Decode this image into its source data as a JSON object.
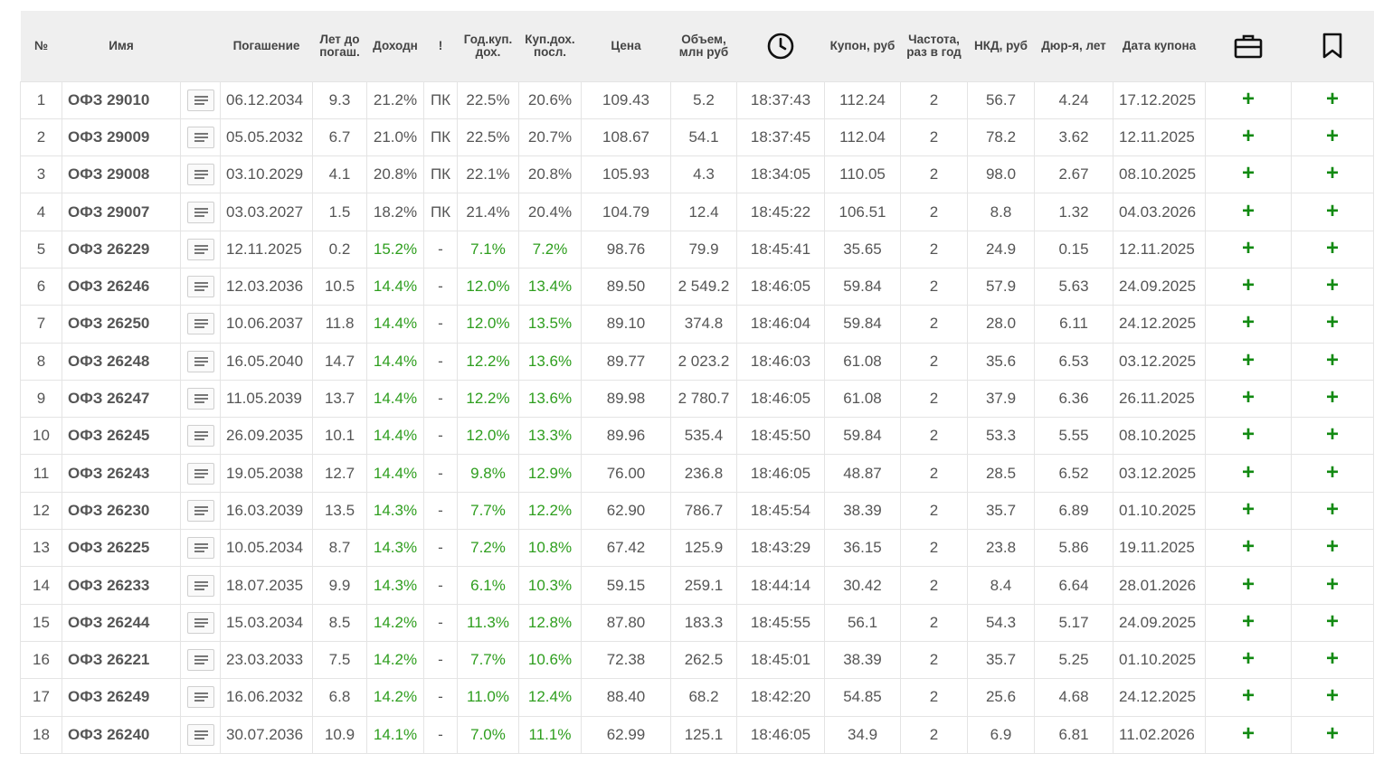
{
  "colors": {
    "accent_green": "#2e9e1e",
    "plus_green": "#128a12"
  },
  "header": {
    "num": "№",
    "name": "Имя",
    "maturity": "Погашение",
    "years_to_maturity": [
      "Лет до",
      "погаш."
    ],
    "yield": "Доходн",
    "flag": "!",
    "annual_coupon_yield": [
      "Год.куп.",
      "дох."
    ],
    "last_coupon_yield": [
      "Куп.дох.",
      "посл."
    ],
    "price": "Цена",
    "volume": [
      "Объем,",
      "млн руб"
    ],
    "time_icon": "clock-icon",
    "coupon": "Купон, руб",
    "frequency": [
      "Частота,",
      "раз в год"
    ],
    "nkd": "НКД, руб",
    "duration": "Дюр-я, лет",
    "coupon_date": "Дата купона",
    "portfolio_icon": "briefcase-icon",
    "favorite_icon": "bookmark-icon"
  },
  "rows": [
    {
      "num": "1",
      "name": "ОФЗ 29010",
      "maturity": "06.12.2034",
      "years": "9.3",
      "yield": "21.2%",
      "flag": "ПК",
      "ann": "22.5%",
      "last": "20.6%",
      "price": "109.43",
      "volume": "5.2",
      "time": "18:37:43",
      "coupon": "112.24",
      "freq": "2",
      "nkd": "56.7",
      "dur": "4.24",
      "cdate": "17.12.2025",
      "green": false
    },
    {
      "num": "2",
      "name": "ОФЗ 29009",
      "maturity": "05.05.2032",
      "years": "6.7",
      "yield": "21.0%",
      "flag": "ПК",
      "ann": "22.5%",
      "last": "20.7%",
      "price": "108.67",
      "volume": "54.1",
      "time": "18:37:45",
      "coupon": "112.04",
      "freq": "2",
      "nkd": "78.2",
      "dur": "3.62",
      "cdate": "12.11.2025",
      "green": false
    },
    {
      "num": "3",
      "name": "ОФЗ 29008",
      "maturity": "03.10.2029",
      "years": "4.1",
      "yield": "20.8%",
      "flag": "ПК",
      "ann": "22.1%",
      "last": "20.8%",
      "price": "105.93",
      "volume": "4.3",
      "time": "18:34:05",
      "coupon": "110.05",
      "freq": "2",
      "nkd": "98.0",
      "dur": "2.67",
      "cdate": "08.10.2025",
      "green": false
    },
    {
      "num": "4",
      "name": "ОФЗ 29007",
      "maturity": "03.03.2027",
      "years": "1.5",
      "yield": "18.2%",
      "flag": "ПК",
      "ann": "21.4%",
      "last": "20.4%",
      "price": "104.79",
      "volume": "12.4",
      "time": "18:45:22",
      "coupon": "106.51",
      "freq": "2",
      "nkd": "8.8",
      "dur": "1.32",
      "cdate": "04.03.2026",
      "green": false
    },
    {
      "num": "5",
      "name": "ОФЗ 26229",
      "maturity": "12.11.2025",
      "years": "0.2",
      "yield": "15.2%",
      "flag": "-",
      "ann": "7.1%",
      "last": "7.2%",
      "price": "98.76",
      "volume": "79.9",
      "time": "18:45:41",
      "coupon": "35.65",
      "freq": "2",
      "nkd": "24.9",
      "dur": "0.15",
      "cdate": "12.11.2025",
      "green": true
    },
    {
      "num": "6",
      "name": "ОФЗ 26246",
      "maturity": "12.03.2036",
      "years": "10.5",
      "yield": "14.4%",
      "flag": "-",
      "ann": "12.0%",
      "last": "13.4%",
      "price": "89.50",
      "volume": "2 549.2",
      "time": "18:46:05",
      "coupon": "59.84",
      "freq": "2",
      "nkd": "57.9",
      "dur": "5.63",
      "cdate": "24.09.2025",
      "green": true
    },
    {
      "num": "7",
      "name": "ОФЗ 26250",
      "maturity": "10.06.2037",
      "years": "11.8",
      "yield": "14.4%",
      "flag": "-",
      "ann": "12.0%",
      "last": "13.5%",
      "price": "89.10",
      "volume": "374.8",
      "time": "18:46:04",
      "coupon": "59.84",
      "freq": "2",
      "nkd": "28.0",
      "dur": "6.11",
      "cdate": "24.12.2025",
      "green": true
    },
    {
      "num": "8",
      "name": "ОФЗ 26248",
      "maturity": "16.05.2040",
      "years": "14.7",
      "yield": "14.4%",
      "flag": "-",
      "ann": "12.2%",
      "last": "13.6%",
      "price": "89.77",
      "volume": "2 023.2",
      "time": "18:46:03",
      "coupon": "61.08",
      "freq": "2",
      "nkd": "35.6",
      "dur": "6.53",
      "cdate": "03.12.2025",
      "green": true
    },
    {
      "num": "9",
      "name": "ОФЗ 26247",
      "maturity": "11.05.2039",
      "years": "13.7",
      "yield": "14.4%",
      "flag": "-",
      "ann": "12.2%",
      "last": "13.6%",
      "price": "89.98",
      "volume": "2 780.7",
      "time": "18:46:05",
      "coupon": "61.08",
      "freq": "2",
      "nkd": "37.9",
      "dur": "6.36",
      "cdate": "26.11.2025",
      "green": true
    },
    {
      "num": "10",
      "name": "ОФЗ 26245",
      "maturity": "26.09.2035",
      "years": "10.1",
      "yield": "14.4%",
      "flag": "-",
      "ann": "12.0%",
      "last": "13.3%",
      "price": "89.96",
      "volume": "535.4",
      "time": "18:45:50",
      "coupon": "59.84",
      "freq": "2",
      "nkd": "53.3",
      "dur": "5.55",
      "cdate": "08.10.2025",
      "green": true
    },
    {
      "num": "11",
      "name": "ОФЗ 26243",
      "maturity": "19.05.2038",
      "years": "12.7",
      "yield": "14.4%",
      "flag": "-",
      "ann": "9.8%",
      "last": "12.9%",
      "price": "76.00",
      "volume": "236.8",
      "time": "18:46:05",
      "coupon": "48.87",
      "freq": "2",
      "nkd": "28.5",
      "dur": "6.52",
      "cdate": "03.12.2025",
      "green": true
    },
    {
      "num": "12",
      "name": "ОФЗ 26230",
      "maturity": "16.03.2039",
      "years": "13.5",
      "yield": "14.3%",
      "flag": "-",
      "ann": "7.7%",
      "last": "12.2%",
      "price": "62.90",
      "volume": "786.7",
      "time": "18:45:54",
      "coupon": "38.39",
      "freq": "2",
      "nkd": "35.7",
      "dur": "6.89",
      "cdate": "01.10.2025",
      "green": true
    },
    {
      "num": "13",
      "name": "ОФЗ 26225",
      "maturity": "10.05.2034",
      "years": "8.7",
      "yield": "14.3%",
      "flag": "-",
      "ann": "7.2%",
      "last": "10.8%",
      "price": "67.42",
      "volume": "125.9",
      "time": "18:43:29",
      "coupon": "36.15",
      "freq": "2",
      "nkd": "23.8",
      "dur": "5.86",
      "cdate": "19.11.2025",
      "green": true
    },
    {
      "num": "14",
      "name": "ОФЗ 26233",
      "maturity": "18.07.2035",
      "years": "9.9",
      "yield": "14.3%",
      "flag": "-",
      "ann": "6.1%",
      "last": "10.3%",
      "price": "59.15",
      "volume": "259.1",
      "time": "18:44:14",
      "coupon": "30.42",
      "freq": "2",
      "nkd": "8.4",
      "dur": "6.64",
      "cdate": "28.01.2026",
      "green": true
    },
    {
      "num": "15",
      "name": "ОФЗ 26244",
      "maturity": "15.03.2034",
      "years": "8.5",
      "yield": "14.2%",
      "flag": "-",
      "ann": "11.3%",
      "last": "12.8%",
      "price": "87.80",
      "volume": "183.3",
      "time": "18:45:55",
      "coupon": "56.1",
      "freq": "2",
      "nkd": "54.3",
      "dur": "5.17",
      "cdate": "24.09.2025",
      "green": true
    },
    {
      "num": "16",
      "name": "ОФЗ 26221",
      "maturity": "23.03.2033",
      "years": "7.5",
      "yield": "14.2%",
      "flag": "-",
      "ann": "7.7%",
      "last": "10.6%",
      "price": "72.38",
      "volume": "262.5",
      "time": "18:45:01",
      "coupon": "38.39",
      "freq": "2",
      "nkd": "35.7",
      "dur": "5.25",
      "cdate": "01.10.2025",
      "green": true
    },
    {
      "num": "17",
      "name": "ОФЗ 26249",
      "maturity": "16.06.2032",
      "years": "6.8",
      "yield": "14.2%",
      "flag": "-",
      "ann": "11.0%",
      "last": "12.4%",
      "price": "88.40",
      "volume": "68.2",
      "time": "18:42:20",
      "coupon": "54.85",
      "freq": "2",
      "nkd": "25.6",
      "dur": "4.68",
      "cdate": "24.12.2025",
      "green": true
    },
    {
      "num": "18",
      "name": "ОФЗ 26240",
      "maturity": "30.07.2036",
      "years": "10.9",
      "yield": "14.1%",
      "flag": "-",
      "ann": "7.0%",
      "last": "11.1%",
      "price": "62.99",
      "volume": "125.1",
      "time": "18:46:05",
      "coupon": "34.9",
      "freq": "2",
      "nkd": "6.9",
      "dur": "6.81",
      "cdate": "11.02.2026",
      "green": true
    }
  ],
  "row_actions": {
    "add_portfolio": "+",
    "add_favorite": "+"
  }
}
